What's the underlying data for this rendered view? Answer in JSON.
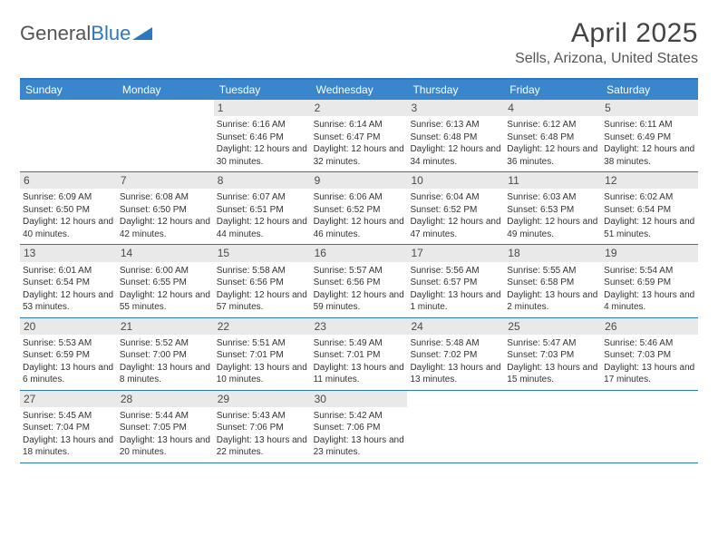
{
  "logo": {
    "general": "General",
    "blue": "Blue"
  },
  "title": "April 2025",
  "location": "Sells, Arizona, United States",
  "colors": {
    "header_bg": "#3a86cc",
    "header_text": "#ffffff",
    "border": "#2d77c2",
    "daynum_bg": "#e9e9e9",
    "text": "#333333",
    "logo_gray": "#555555",
    "logo_blue": "#2d77c2"
  },
  "day_names": [
    "Sunday",
    "Monday",
    "Tuesday",
    "Wednesday",
    "Thursday",
    "Friday",
    "Saturday"
  ],
  "weeks": [
    [
      null,
      null,
      {
        "n": "1",
        "sunrise": "6:16 AM",
        "sunset": "6:46 PM",
        "daylight": "12 hours and 30 minutes."
      },
      {
        "n": "2",
        "sunrise": "6:14 AM",
        "sunset": "6:47 PM",
        "daylight": "12 hours and 32 minutes."
      },
      {
        "n": "3",
        "sunrise": "6:13 AM",
        "sunset": "6:48 PM",
        "daylight": "12 hours and 34 minutes."
      },
      {
        "n": "4",
        "sunrise": "6:12 AM",
        "sunset": "6:48 PM",
        "daylight": "12 hours and 36 minutes."
      },
      {
        "n": "5",
        "sunrise": "6:11 AM",
        "sunset": "6:49 PM",
        "daylight": "12 hours and 38 minutes."
      }
    ],
    [
      {
        "n": "6",
        "sunrise": "6:09 AM",
        "sunset": "6:50 PM",
        "daylight": "12 hours and 40 minutes."
      },
      {
        "n": "7",
        "sunrise": "6:08 AM",
        "sunset": "6:50 PM",
        "daylight": "12 hours and 42 minutes."
      },
      {
        "n": "8",
        "sunrise": "6:07 AM",
        "sunset": "6:51 PM",
        "daylight": "12 hours and 44 minutes."
      },
      {
        "n": "9",
        "sunrise": "6:06 AM",
        "sunset": "6:52 PM",
        "daylight": "12 hours and 46 minutes."
      },
      {
        "n": "10",
        "sunrise": "6:04 AM",
        "sunset": "6:52 PM",
        "daylight": "12 hours and 47 minutes."
      },
      {
        "n": "11",
        "sunrise": "6:03 AM",
        "sunset": "6:53 PM",
        "daylight": "12 hours and 49 minutes."
      },
      {
        "n": "12",
        "sunrise": "6:02 AM",
        "sunset": "6:54 PM",
        "daylight": "12 hours and 51 minutes."
      }
    ],
    [
      {
        "n": "13",
        "sunrise": "6:01 AM",
        "sunset": "6:54 PM",
        "daylight": "12 hours and 53 minutes."
      },
      {
        "n": "14",
        "sunrise": "6:00 AM",
        "sunset": "6:55 PM",
        "daylight": "12 hours and 55 minutes."
      },
      {
        "n": "15",
        "sunrise": "5:58 AM",
        "sunset": "6:56 PM",
        "daylight": "12 hours and 57 minutes."
      },
      {
        "n": "16",
        "sunrise": "5:57 AM",
        "sunset": "6:56 PM",
        "daylight": "12 hours and 59 minutes."
      },
      {
        "n": "17",
        "sunrise": "5:56 AM",
        "sunset": "6:57 PM",
        "daylight": "13 hours and 1 minute."
      },
      {
        "n": "18",
        "sunrise": "5:55 AM",
        "sunset": "6:58 PM",
        "daylight": "13 hours and 2 minutes."
      },
      {
        "n": "19",
        "sunrise": "5:54 AM",
        "sunset": "6:59 PM",
        "daylight": "13 hours and 4 minutes."
      }
    ],
    [
      {
        "n": "20",
        "sunrise": "5:53 AM",
        "sunset": "6:59 PM",
        "daylight": "13 hours and 6 minutes."
      },
      {
        "n": "21",
        "sunrise": "5:52 AM",
        "sunset": "7:00 PM",
        "daylight": "13 hours and 8 minutes."
      },
      {
        "n": "22",
        "sunrise": "5:51 AM",
        "sunset": "7:01 PM",
        "daylight": "13 hours and 10 minutes."
      },
      {
        "n": "23",
        "sunrise": "5:49 AM",
        "sunset": "7:01 PM",
        "daylight": "13 hours and 11 minutes."
      },
      {
        "n": "24",
        "sunrise": "5:48 AM",
        "sunset": "7:02 PM",
        "daylight": "13 hours and 13 minutes."
      },
      {
        "n": "25",
        "sunrise": "5:47 AM",
        "sunset": "7:03 PM",
        "daylight": "13 hours and 15 minutes."
      },
      {
        "n": "26",
        "sunrise": "5:46 AM",
        "sunset": "7:03 PM",
        "daylight": "13 hours and 17 minutes."
      }
    ],
    [
      {
        "n": "27",
        "sunrise": "5:45 AM",
        "sunset": "7:04 PM",
        "daylight": "13 hours and 18 minutes."
      },
      {
        "n": "28",
        "sunrise": "5:44 AM",
        "sunset": "7:05 PM",
        "daylight": "13 hours and 20 minutes."
      },
      {
        "n": "29",
        "sunrise": "5:43 AM",
        "sunset": "7:06 PM",
        "daylight": "13 hours and 22 minutes."
      },
      {
        "n": "30",
        "sunrise": "5:42 AM",
        "sunset": "7:06 PM",
        "daylight": "13 hours and 23 minutes."
      },
      null,
      null,
      null
    ]
  ],
  "labels": {
    "sunrise": "Sunrise: ",
    "sunset": "Sunset: ",
    "daylight": "Daylight: "
  }
}
